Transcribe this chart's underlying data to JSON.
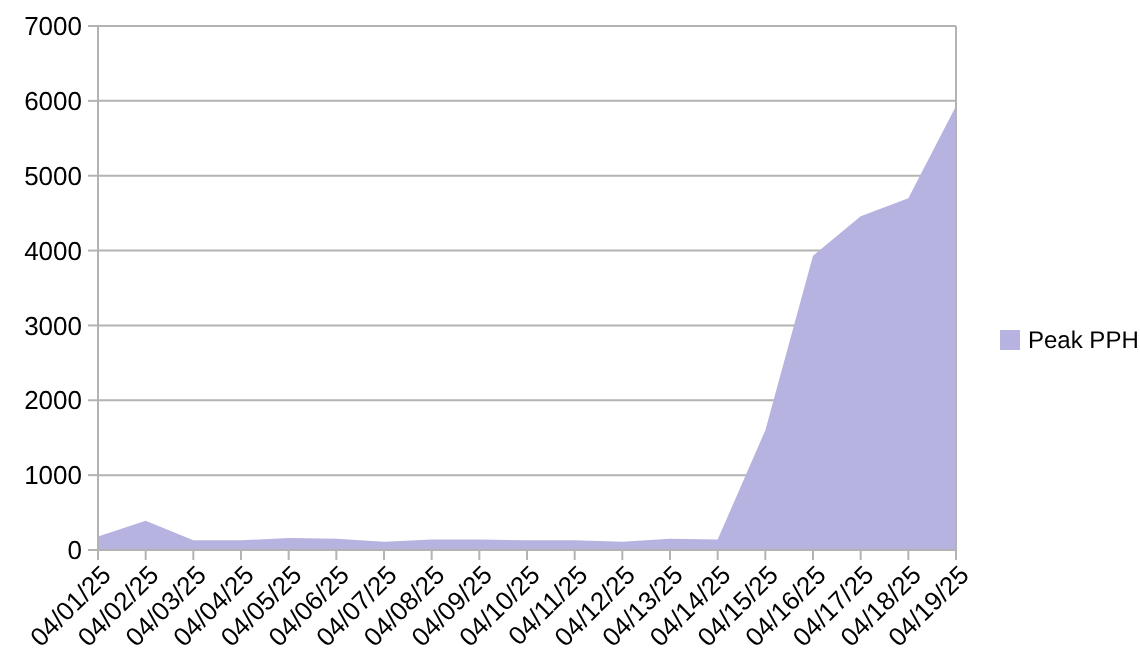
{
  "chart_data": {
    "type": "area",
    "categories": [
      "04/01/25",
      "04/02/25",
      "04/03/25",
      "04/04/25",
      "04/05/25",
      "04/06/25",
      "04/07/25",
      "04/08/25",
      "04/09/25",
      "04/10/25",
      "04/11/25",
      "04/12/25",
      "04/13/25",
      "04/14/25",
      "04/15/25",
      "04/16/25",
      "04/17/25",
      "04/18/25",
      "04/19/25"
    ],
    "series": [
      {
        "name": "Peak PPH",
        "color": "#b7b3e0",
        "values": [
          180,
          390,
          130,
          130,
          160,
          150,
          110,
          140,
          140,
          130,
          130,
          110,
          150,
          140,
          1600,
          3930,
          4460,
          4700,
          5930
        ]
      }
    ],
    "ylim": [
      0,
      7000
    ],
    "yticks": [
      0,
      1000,
      2000,
      3000,
      4000,
      5000,
      6000,
      7000
    ],
    "grid": "y",
    "legend": "right"
  }
}
